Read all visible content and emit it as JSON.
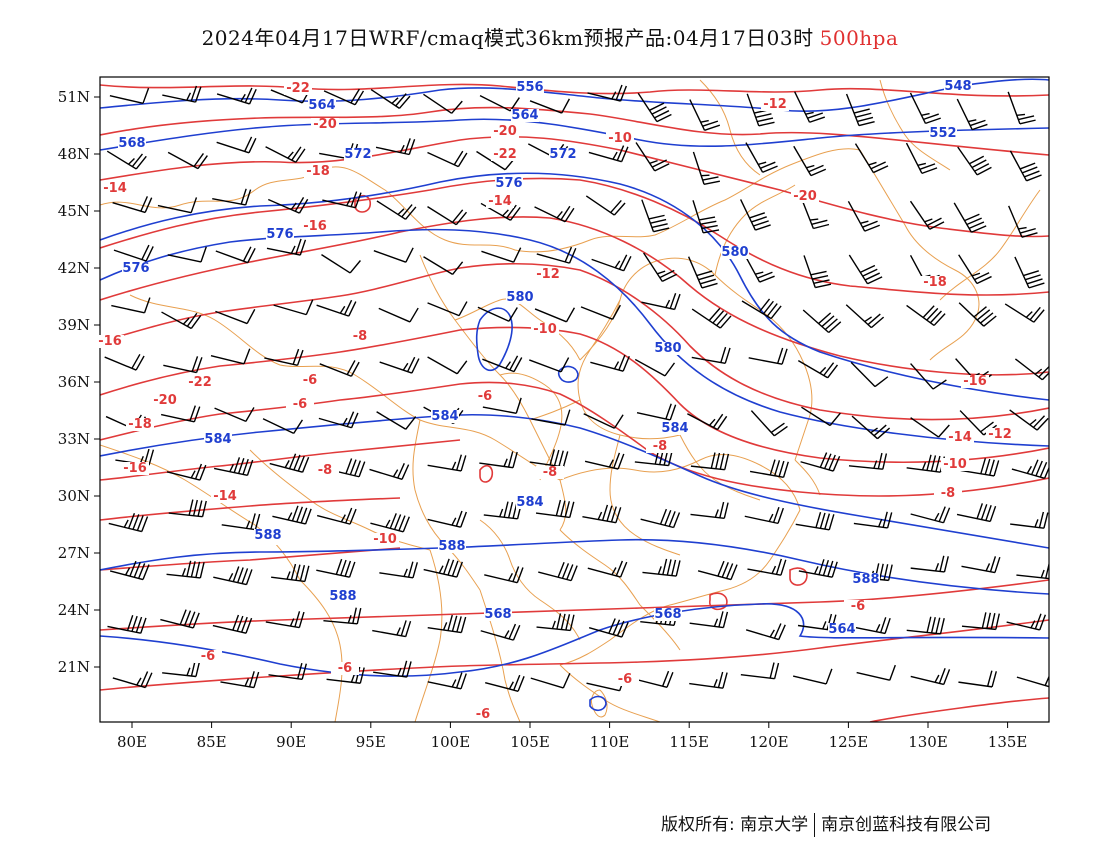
{
  "title": {
    "main": "2024年04月17日WRF/cmaq模式36km预报产品:04月17日03时",
    "level": "500hpa"
  },
  "axes": {
    "lon_labels": [
      "80E",
      "85E",
      "90E",
      "95E",
      "100E",
      "105E",
      "110E",
      "115E",
      "120E",
      "125E",
      "130E",
      "135E"
    ],
    "lat_labels": [
      "51N",
      "48N",
      "45N",
      "42N",
      "39N",
      "36N",
      "33N",
      "30N",
      "27N",
      "24N",
      "21N"
    ]
  },
  "colors": {
    "temperature": "#e03a3a",
    "height": "#1f3fd0",
    "border": "#e8a050",
    "wind": "#000000"
  },
  "contours": {
    "temperature_labels": [
      "-22",
      "-20",
      "-18",
      "-16",
      "-14",
      "-12",
      "-10",
      "-8",
      "-6",
      "-22",
      "-20",
      "-18",
      "-16",
      "-14",
      "-12",
      "-10",
      "-8",
      "-6",
      "-16",
      "-14",
      "-12",
      "-10",
      "-20",
      "-22",
      "-20",
      "-18",
      "-16",
      "-14",
      "-12",
      "-10",
      "-8",
      "-8",
      "-8",
      "-6",
      "-6",
      "-6",
      "-6",
      "-6",
      "-6"
    ],
    "height_labels": [
      "548",
      "552",
      "556",
      "564",
      "564",
      "568",
      "572",
      "572",
      "576",
      "576",
      "576",
      "580",
      "580",
      "580",
      "584",
      "584",
      "584",
      "584",
      "588",
      "588",
      "588",
      "588",
      "568",
      "568",
      "564"
    ]
  },
  "footer": {
    "copyright": "版权所有: 南京大学",
    "company": "南京创蓝科技有限公司"
  }
}
